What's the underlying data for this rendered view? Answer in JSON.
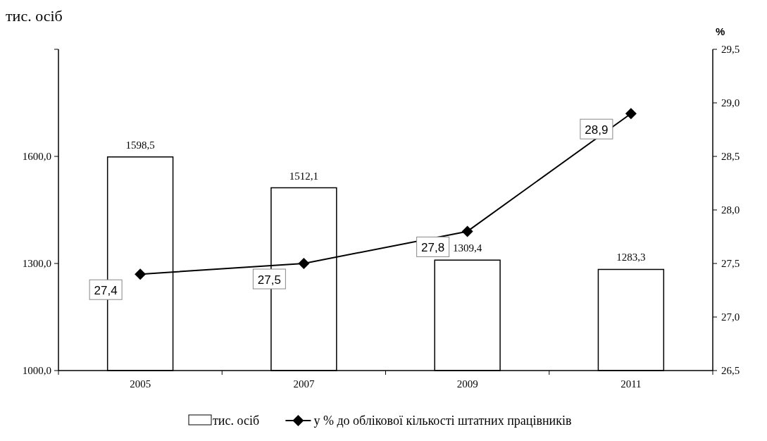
{
  "chart_data": {
    "type": "bar",
    "ylabel": "тис. осіб",
    "y2label": "%",
    "categories": [
      "2005",
      "2007",
      "2009",
      "2011"
    ],
    "series": [
      {
        "name": "тис. осіб",
        "color": "#ffffff",
        "values": [
          1598.5,
          1512.1,
          1309.4,
          1283.3
        ],
        "value_labels": [
          "1598,5",
          "1512,1",
          "1309,4",
          "1283,3"
        ]
      },
      {
        "name": "у % до облікової кількості штатних працівників",
        "type": "line",
        "axis": "y2",
        "color": "#000000",
        "marker": "diamond",
        "values": [
          27.4,
          27.5,
          27.8,
          28.9
        ],
        "value_labels": [
          "27,4",
          "27,5",
          "27,8",
          "28,9"
        ]
      }
    ],
    "ylim": [
      1000,
      1900
    ],
    "yticks": [
      {
        "value": 1000,
        "label": "1000,0"
      },
      {
        "value": 1300,
        "label": "1300,0"
      },
      {
        "value": 1600,
        "label": "1600,0"
      },
      {
        "value": 1900,
        "label": null
      }
    ],
    "y2lim": [
      26.5,
      29.5
    ],
    "y2ticks": [
      {
        "value": 26.5,
        "label": "26,5"
      },
      {
        "value": 27,
        "label": "27,0"
      },
      {
        "value": 27.5,
        "label": "27,5"
      },
      {
        "value": 28,
        "label": "28,0"
      },
      {
        "value": 28.5,
        "label": "28,5"
      },
      {
        "value": 29,
        "label": "29,0"
      },
      {
        "value": 29.5,
        "label": "29,5"
      }
    ],
    "grid": false,
    "legend": "bottom"
  }
}
